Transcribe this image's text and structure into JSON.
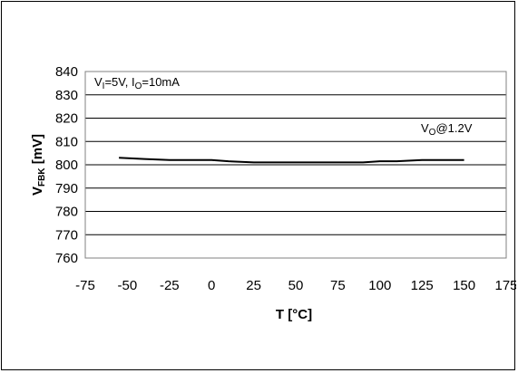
{
  "chart_data": {
    "type": "line",
    "xlabel": "T [°C]",
    "ylabel": {
      "main": "V",
      "sub": "FBK",
      "rest": " [mV]"
    },
    "xlim": [
      -75,
      175
    ],
    "ylim": [
      760,
      840
    ],
    "xticks": [
      "-75",
      "-50",
      "-25",
      "0",
      "25",
      "50",
      "75",
      "100",
      "125",
      "150",
      "175"
    ],
    "yticks": [
      "760",
      "770",
      "780",
      "790",
      "800",
      "810",
      "820",
      "830",
      "840"
    ],
    "grid": "horizontal",
    "series": [
      {
        "color": "#000000",
        "x": [
          -55,
          -40,
          -25,
          -10,
          0,
          10,
          25,
          40,
          50,
          60,
          75,
          90,
          100,
          110,
          125,
          140,
          150
        ],
        "y": [
          803,
          802.5,
          802,
          802,
          802,
          801.5,
          801,
          801,
          801,
          801,
          801,
          801,
          801.5,
          801.5,
          802,
          802,
          802
        ]
      }
    ],
    "annotations": {
      "conditions": {
        "v": "V",
        "v_sub": "I",
        "mid": "=5V, I",
        "i_sub": "O",
        "end": "=10mA"
      },
      "vout": {
        "v": "V",
        "v_sub": "O",
        "end": "@1.2V"
      }
    }
  },
  "colors": {
    "grid": "#000000",
    "plot_border": "#808080",
    "line": "#000000"
  }
}
